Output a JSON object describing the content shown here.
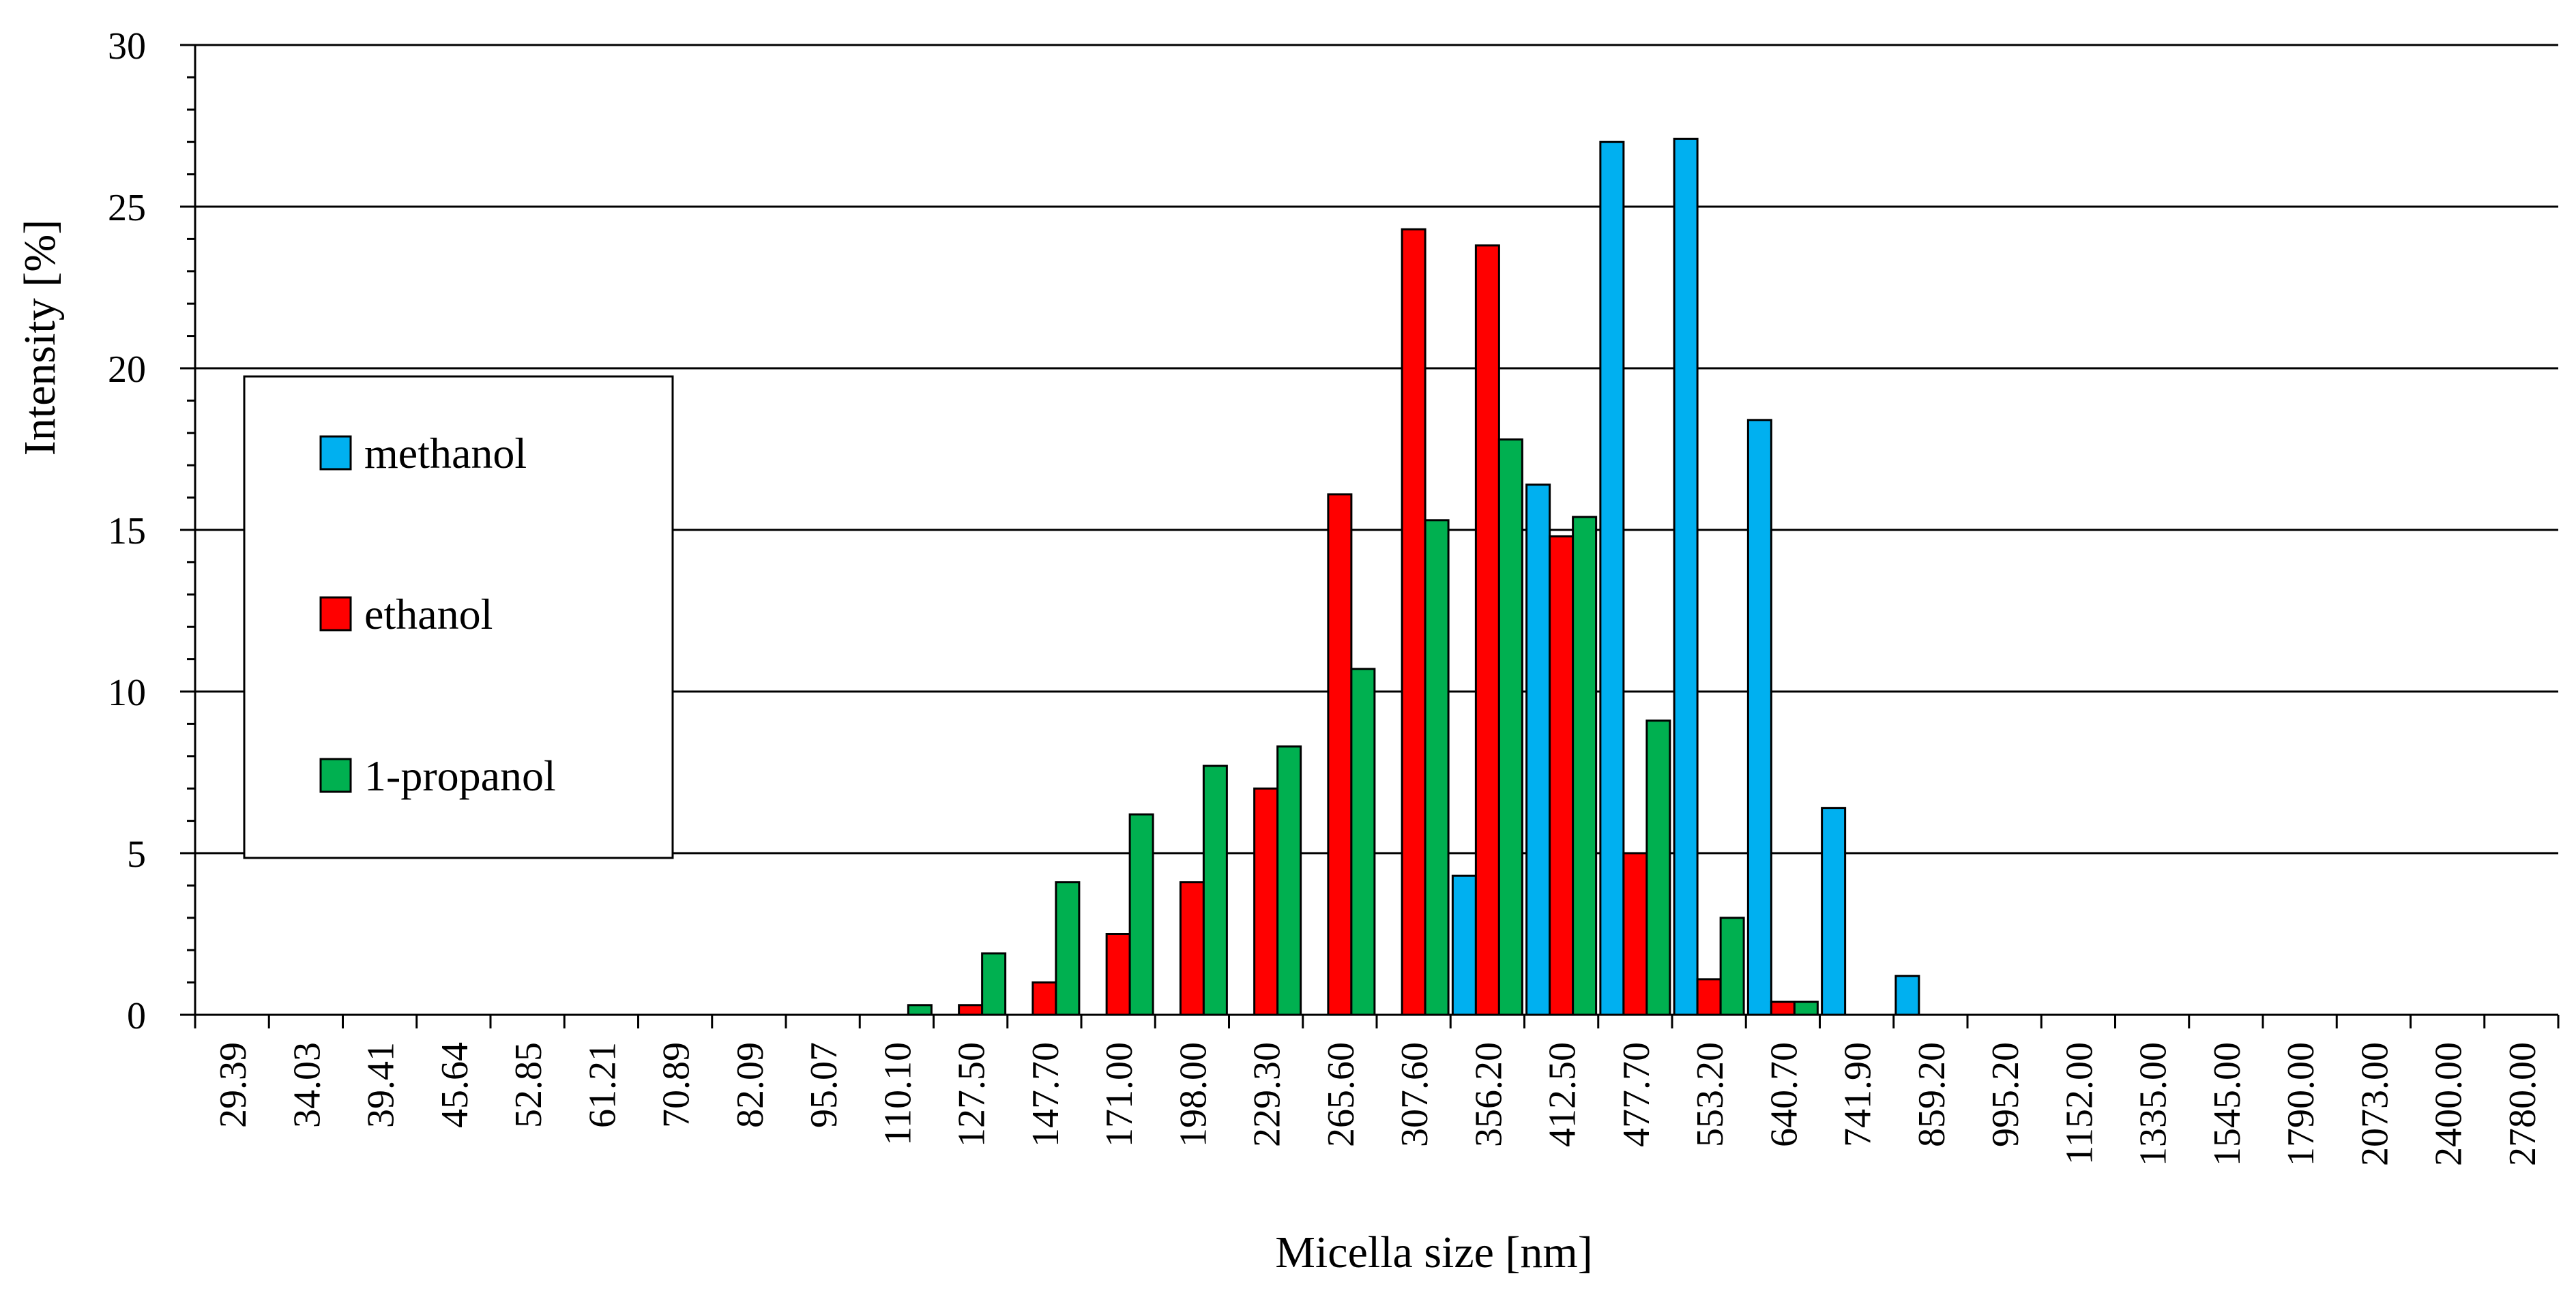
{
  "chart_data": {
    "type": "bar",
    "title": "",
    "xlabel": "Micella size [nm]",
    "ylabel": "Intensity [%]",
    "ylim": [
      0,
      30
    ],
    "yticks": [
      "0",
      "5",
      "10",
      "15",
      "20",
      "25",
      "30"
    ],
    "grid": true,
    "legend_position": "left",
    "categories": [
      "29.39",
      "34.03",
      "39.41",
      "45.64",
      "52.85",
      "61.21",
      "70.89",
      "82.09",
      "95.07",
      "110.10",
      "127.50",
      "147.70",
      "171.00",
      "198.00",
      "229.30",
      "265.60",
      "307.60",
      "356.20",
      "412.50",
      "477.70",
      "553.20",
      "640.70",
      "741.90",
      "859.20",
      "995.20",
      "1152.00",
      "1335.00",
      "1545.00",
      "1790.00",
      "2073.00",
      "2400.00",
      "2780.00"
    ],
    "series": [
      {
        "name": "methanol",
        "color": "#00B0F0",
        "values": [
          0,
          0,
          0,
          0,
          0,
          0,
          0,
          0,
          0,
          0,
          0,
          0,
          0,
          0,
          0,
          0,
          0,
          4.3,
          16.4,
          27.0,
          27.1,
          18.4,
          6.4,
          1.2,
          0,
          0,
          0,
          0,
          0,
          0,
          0,
          0
        ]
      },
      {
        "name": "ethanol",
        "color": "#FF0000",
        "values": [
          0,
          0,
          0,
          0,
          0,
          0,
          0,
          0,
          0,
          0,
          0.3,
          1.0,
          2.5,
          4.1,
          7.0,
          16.1,
          24.3,
          23.8,
          14.8,
          5.0,
          1.1,
          0.4,
          0,
          0,
          0,
          0,
          0,
          0,
          0,
          0,
          0,
          0
        ]
      },
      {
        "name": "1-propanol",
        "color": "#00B050",
        "values": [
          0,
          0,
          0,
          0,
          0,
          0,
          0,
          0,
          0,
          0.3,
          1.9,
          4.1,
          6.2,
          7.7,
          8.3,
          10.7,
          15.3,
          17.8,
          15.4,
          9.1,
          3.0,
          0.4,
          0,
          0,
          0,
          0,
          0,
          0,
          0,
          0,
          0,
          0
        ]
      }
    ]
  }
}
